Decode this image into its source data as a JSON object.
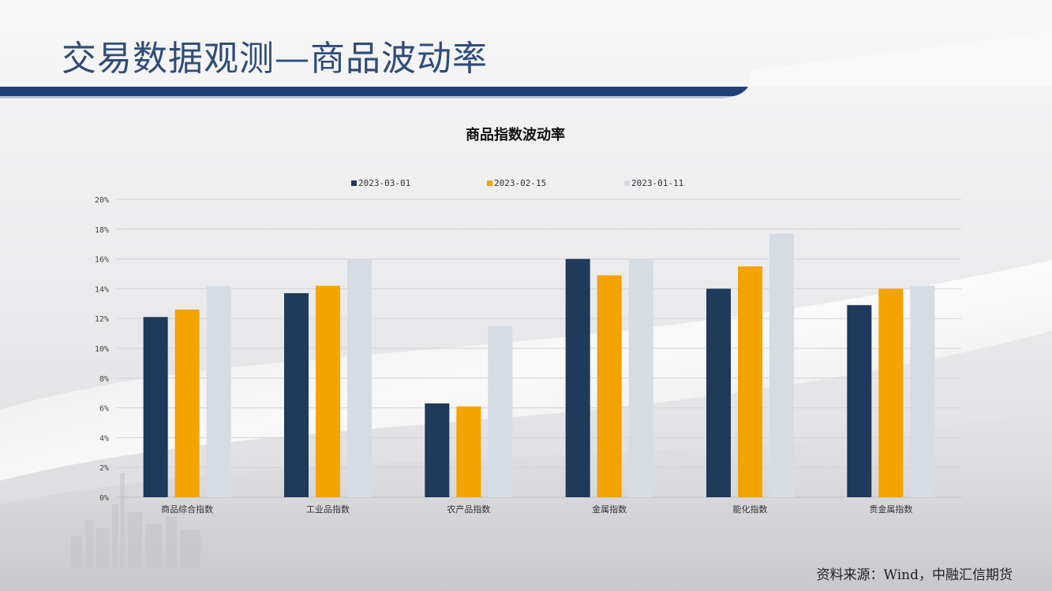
{
  "page": {
    "title": "交易数据观测—商品波动率",
    "source": "资料来源：Wind，中融汇信期货"
  },
  "colors": {
    "title": "#2f4d78",
    "accent_bar": "#1f3f78",
    "series": [
      "#1f3a5a",
      "#f5a300",
      "#d6dce4"
    ]
  },
  "chart_data": {
    "type": "bar",
    "title": "商品指数波动率",
    "categories": [
      "商品综合指数",
      "工业品指数",
      "农产品指数",
      "金属指数",
      "能化指数",
      "贵金属指数"
    ],
    "series": [
      {
        "name": "2023-03-01",
        "values": [
          12.1,
          13.7,
          6.3,
          16.0,
          14.0,
          12.9
        ]
      },
      {
        "name": "2023-02-15",
        "values": [
          12.6,
          14.2,
          6.1,
          14.9,
          15.5,
          14.0
        ]
      },
      {
        "name": "2023-01-11",
        "values": [
          14.2,
          16.0,
          11.5,
          16.0,
          17.7,
          14.2
        ]
      }
    ],
    "ylim": [
      0,
      20
    ],
    "yticks": [
      0,
      2,
      4,
      6,
      8,
      10,
      12,
      14,
      16,
      18,
      20
    ],
    "ytick_suffix": "%",
    "grid": true,
    "legend_position": "top-center"
  }
}
